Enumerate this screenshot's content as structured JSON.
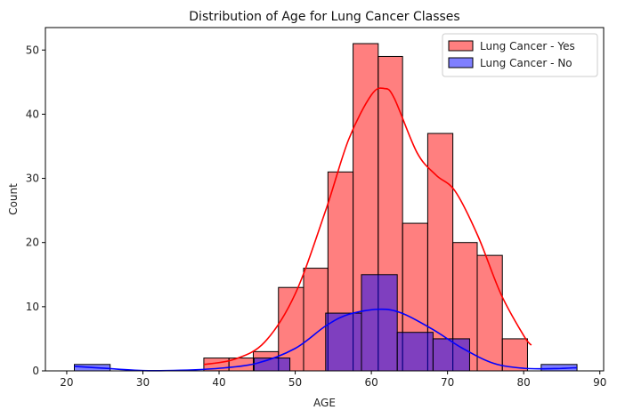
{
  "chart_data": {
    "type": "bar",
    "title": "Distribution of Age for Lung Cancer Classes",
    "xlabel": "AGE",
    "ylabel": "Count",
    "xlim": [
      17.2,
      90.5
    ],
    "ylim": [
      0,
      53.5
    ],
    "xticks": [
      20,
      30,
      40,
      50,
      60,
      70,
      80,
      90
    ],
    "yticks": [
      0,
      10,
      20,
      30,
      40,
      50
    ],
    "legend_position": "top-right",
    "grid": false,
    "series": [
      {
        "name": "Lung Cancer - Yes",
        "color": "#ff0000",
        "bin_edges": [
          38,
          41.3,
          44.5,
          47.8,
          51.1,
          54.3,
          57.6,
          60.9,
          64.1,
          67.4,
          70.7,
          73.9,
          77.2,
          80.5
        ],
        "values": [
          2,
          2,
          3,
          13,
          16,
          31,
          51,
          49,
          23,
          37,
          20,
          18,
          5
        ],
        "kde_x": [
          38,
          42,
          46,
          50,
          54,
          57,
          60,
          61.7,
          63,
          66,
          68.5,
          71,
          74,
          77,
          80,
          81
        ],
        "kde_y": [
          1,
          1.8,
          4.5,
          12,
          25,
          36,
          43,
          44,
          42.5,
          34,
          30.5,
          28,
          21,
          12,
          5.5,
          4
        ]
      },
      {
        "name": "Lung Cancer - No",
        "color": "#0000ff",
        "bin_edges": [
          21,
          25.7,
          30.4,
          35.1,
          39.9,
          44.6,
          49.3,
          54,
          58.7,
          63.4,
          68.1,
          72.9,
          77.6,
          82.3,
          87
        ],
        "values": [
          1,
          0,
          0,
          0,
          0,
          2,
          0,
          9,
          15,
          6,
          5,
          0,
          0,
          1
        ],
        "kde_x": [
          21,
          25,
          30,
          35,
          40,
          45,
          50,
          54,
          57,
          61,
          64,
          68,
          72,
          76,
          80,
          84,
          87
        ],
        "kde_y": [
          0.7,
          0.4,
          0.05,
          0.1,
          0.4,
          1.2,
          3.5,
          7,
          8.8,
          9.6,
          9,
          6.5,
          3.5,
          1.2,
          0.4,
          0.35,
          0.5
        ]
      }
    ]
  }
}
